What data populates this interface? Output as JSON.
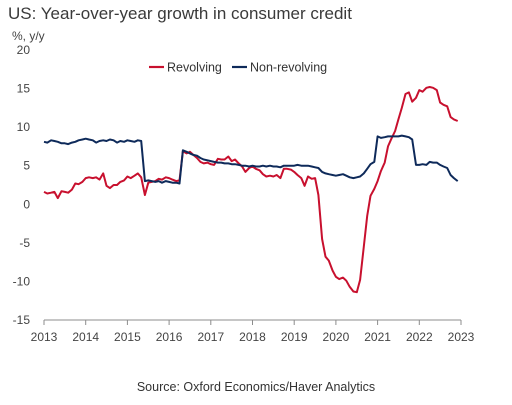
{
  "title": "US: Year-over-year growth in consumer credit",
  "unit_label": "%, y/y",
  "source": "Source: Oxford Economics/Haver Analytics",
  "chart_data": {
    "type": "line",
    "xlim": [
      2013,
      2023
    ],
    "ylim": [
      -15,
      20
    ],
    "y_ticks": [
      -15,
      -10,
      -5,
      0,
      5,
      10,
      15,
      20
    ],
    "x_ticks": [
      "2013",
      "2014",
      "2015",
      "2016",
      "2017",
      "2018",
      "2019",
      "2020",
      "2021",
      "2022",
      "2023"
    ],
    "grid": false,
    "legend_position": "top-center",
    "series": [
      {
        "name": "Revolving",
        "color": "#c8102e",
        "points": [
          [
            2013.0,
            1.6
          ],
          [
            2013.08,
            1.4
          ],
          [
            2013.17,
            1.5
          ],
          [
            2013.25,
            1.6
          ],
          [
            2013.33,
            0.8
          ],
          [
            2013.42,
            1.7
          ],
          [
            2013.5,
            1.6
          ],
          [
            2013.58,
            1.5
          ],
          [
            2013.67,
            1.9
          ],
          [
            2013.75,
            2.7
          ],
          [
            2013.83,
            2.6
          ],
          [
            2013.92,
            2.9
          ],
          [
            2014.0,
            3.4
          ],
          [
            2014.08,
            3.5
          ],
          [
            2014.17,
            3.4
          ],
          [
            2014.25,
            3.5
          ],
          [
            2014.33,
            3.2
          ],
          [
            2014.42,
            4.0
          ],
          [
            2014.5,
            2.4
          ],
          [
            2014.58,
            2.1
          ],
          [
            2014.67,
            2.5
          ],
          [
            2014.75,
            2.5
          ],
          [
            2014.83,
            2.9
          ],
          [
            2014.92,
            3.1
          ],
          [
            2015.0,
            3.6
          ],
          [
            2015.08,
            3.4
          ],
          [
            2015.17,
            3.7
          ],
          [
            2015.25,
            4.0
          ],
          [
            2015.33,
            3.5
          ],
          [
            2015.42,
            1.2
          ],
          [
            2015.5,
            2.8
          ],
          [
            2015.58,
            2.9
          ],
          [
            2015.67,
            3.0
          ],
          [
            2015.75,
            3.3
          ],
          [
            2015.83,
            3.2
          ],
          [
            2015.92,
            3.5
          ],
          [
            2016.0,
            3.4
          ],
          [
            2016.08,
            3.2
          ],
          [
            2016.17,
            3.0
          ],
          [
            2016.25,
            3.1
          ],
          [
            2016.33,
            6.9
          ],
          [
            2016.42,
            6.6
          ],
          [
            2016.5,
            6.8
          ],
          [
            2016.58,
            6.4
          ],
          [
            2016.67,
            6.0
          ],
          [
            2016.75,
            5.5
          ],
          [
            2016.83,
            5.3
          ],
          [
            2016.92,
            5.4
          ],
          [
            2017.0,
            5.2
          ],
          [
            2017.08,
            5.1
          ],
          [
            2017.17,
            5.9
          ],
          [
            2017.25,
            5.8
          ],
          [
            2017.33,
            5.8
          ],
          [
            2017.42,
            6.2
          ],
          [
            2017.5,
            5.6
          ],
          [
            2017.58,
            5.8
          ],
          [
            2017.67,
            5.3
          ],
          [
            2017.75,
            4.9
          ],
          [
            2017.83,
            4.2
          ],
          [
            2017.92,
            4.7
          ],
          [
            2018.0,
            4.9
          ],
          [
            2018.08,
            4.6
          ],
          [
            2018.17,
            4.4
          ],
          [
            2018.25,
            3.9
          ],
          [
            2018.33,
            3.6
          ],
          [
            2018.42,
            3.7
          ],
          [
            2018.5,
            3.6
          ],
          [
            2018.58,
            3.8
          ],
          [
            2018.67,
            3.4
          ],
          [
            2018.75,
            4.6
          ],
          [
            2018.83,
            4.6
          ],
          [
            2018.92,
            4.5
          ],
          [
            2019.0,
            4.2
          ],
          [
            2019.08,
            3.8
          ],
          [
            2019.17,
            3.4
          ],
          [
            2019.25,
            2.4
          ],
          [
            2019.33,
            3.6
          ],
          [
            2019.42,
            3.3
          ],
          [
            2019.5,
            3.4
          ],
          [
            2019.58,
            1.2
          ],
          [
            2019.67,
            -4.5
          ],
          [
            2019.75,
            -6.8
          ],
          [
            2019.83,
            -7.3
          ],
          [
            2019.92,
            -8.6
          ],
          [
            2020.0,
            -9.4
          ],
          [
            2020.08,
            -9.7
          ],
          [
            2020.17,
            -9.5
          ],
          [
            2020.25,
            -9.9
          ],
          [
            2020.33,
            -10.7
          ],
          [
            2020.42,
            -11.3
          ],
          [
            2020.5,
            -11.4
          ],
          [
            2020.58,
            -9.8
          ],
          [
            2020.67,
            -5.5
          ],
          [
            2020.75,
            -1.5
          ],
          [
            2020.83,
            1.1
          ],
          [
            2020.92,
            2.0
          ],
          [
            2021.0,
            3.0
          ],
          [
            2021.08,
            4.3
          ],
          [
            2021.17,
            5.4
          ],
          [
            2021.25,
            7.5
          ],
          [
            2021.33,
            8.5
          ],
          [
            2021.42,
            9.5
          ],
          [
            2021.5,
            11.0
          ],
          [
            2021.58,
            12.5
          ],
          [
            2021.67,
            14.3
          ],
          [
            2021.75,
            14.5
          ],
          [
            2021.83,
            13.3
          ],
          [
            2021.92,
            13.8
          ],
          [
            2022.0,
            14.8
          ],
          [
            2022.08,
            14.6
          ],
          [
            2022.17,
            15.1
          ],
          [
            2022.25,
            15.2
          ],
          [
            2022.33,
            15.1
          ],
          [
            2022.42,
            14.8
          ],
          [
            2022.5,
            13.2
          ],
          [
            2022.58,
            12.9
          ],
          [
            2022.67,
            12.7
          ],
          [
            2022.75,
            11.3
          ],
          [
            2022.83,
            11.0
          ],
          [
            2022.92,
            10.8
          ]
        ]
      },
      {
        "name": "Non-revolving",
        "color": "#0e2a5a",
        "points": [
          [
            2013.0,
            8.1
          ],
          [
            2013.08,
            8.0
          ],
          [
            2013.17,
            8.3
          ],
          [
            2013.25,
            8.2
          ],
          [
            2013.33,
            8.1
          ],
          [
            2013.42,
            7.9
          ],
          [
            2013.5,
            7.9
          ],
          [
            2013.58,
            7.8
          ],
          [
            2013.67,
            8.0
          ],
          [
            2013.75,
            8.1
          ],
          [
            2013.83,
            8.3
          ],
          [
            2013.92,
            8.4
          ],
          [
            2014.0,
            8.5
          ],
          [
            2014.08,
            8.4
          ],
          [
            2014.17,
            8.3
          ],
          [
            2014.25,
            8.0
          ],
          [
            2014.33,
            8.2
          ],
          [
            2014.42,
            8.3
          ],
          [
            2014.5,
            8.2
          ],
          [
            2014.58,
            8.4
          ],
          [
            2014.67,
            8.3
          ],
          [
            2014.75,
            8.0
          ],
          [
            2014.83,
            8.2
          ],
          [
            2014.92,
            8.1
          ],
          [
            2015.0,
            8.3
          ],
          [
            2015.08,
            8.2
          ],
          [
            2015.17,
            8.1
          ],
          [
            2015.25,
            8.3
          ],
          [
            2015.33,
            8.2
          ],
          [
            2015.42,
            3.0
          ],
          [
            2015.5,
            3.1
          ],
          [
            2015.58,
            3.0
          ],
          [
            2015.67,
            2.9
          ],
          [
            2015.75,
            3.0
          ],
          [
            2015.83,
            2.8
          ],
          [
            2015.92,
            3.0
          ],
          [
            2016.0,
            2.9
          ],
          [
            2016.08,
            2.8
          ],
          [
            2016.17,
            2.8
          ],
          [
            2016.25,
            2.7
          ],
          [
            2016.33,
            7.0
          ],
          [
            2016.42,
            6.8
          ],
          [
            2016.5,
            6.6
          ],
          [
            2016.58,
            6.4
          ],
          [
            2016.67,
            6.3
          ],
          [
            2016.75,
            6.0
          ],
          [
            2016.83,
            5.8
          ],
          [
            2016.92,
            5.7
          ],
          [
            2017.0,
            5.6
          ],
          [
            2017.08,
            5.5
          ],
          [
            2017.17,
            5.4
          ],
          [
            2017.25,
            5.4
          ],
          [
            2017.33,
            5.3
          ],
          [
            2017.42,
            5.3
          ],
          [
            2017.5,
            5.2
          ],
          [
            2017.58,
            5.2
          ],
          [
            2017.67,
            5.1
          ],
          [
            2017.75,
            5.0
          ],
          [
            2017.83,
            5.0
          ],
          [
            2017.92,
            4.9
          ],
          [
            2018.0,
            5.0
          ],
          [
            2018.08,
            4.9
          ],
          [
            2018.17,
            4.9
          ],
          [
            2018.25,
            5.0
          ],
          [
            2018.33,
            4.9
          ],
          [
            2018.42,
            5.0
          ],
          [
            2018.5,
            4.9
          ],
          [
            2018.58,
            4.9
          ],
          [
            2018.67,
            4.8
          ],
          [
            2018.75,
            5.0
          ],
          [
            2018.83,
            5.0
          ],
          [
            2018.92,
            5.0
          ],
          [
            2019.0,
            5.0
          ],
          [
            2019.08,
            5.1
          ],
          [
            2019.17,
            5.0
          ],
          [
            2019.25,
            5.0
          ],
          [
            2019.33,
            5.0
          ],
          [
            2019.42,
            4.9
          ],
          [
            2019.5,
            4.8
          ],
          [
            2019.58,
            4.7
          ],
          [
            2019.67,
            4.2
          ],
          [
            2019.75,
            4.0
          ],
          [
            2019.83,
            3.9
          ],
          [
            2019.92,
            3.8
          ],
          [
            2020.0,
            3.7
          ],
          [
            2020.08,
            3.8
          ],
          [
            2020.17,
            3.9
          ],
          [
            2020.25,
            3.7
          ],
          [
            2020.33,
            3.5
          ],
          [
            2020.42,
            3.4
          ],
          [
            2020.5,
            3.5
          ],
          [
            2020.58,
            3.6
          ],
          [
            2020.67,
            4.0
          ],
          [
            2020.75,
            4.6
          ],
          [
            2020.83,
            5.2
          ],
          [
            2020.92,
            5.5
          ],
          [
            2021.0,
            8.8
          ],
          [
            2021.08,
            8.6
          ],
          [
            2021.17,
            8.7
          ],
          [
            2021.25,
            8.8
          ],
          [
            2021.33,
            8.8
          ],
          [
            2021.42,
            8.8
          ],
          [
            2021.5,
            8.8
          ],
          [
            2021.58,
            8.9
          ],
          [
            2021.67,
            8.8
          ],
          [
            2021.75,
            8.7
          ],
          [
            2021.83,
            8.4
          ],
          [
            2021.92,
            5.1
          ],
          [
            2022.0,
            5.1
          ],
          [
            2022.08,
            5.2
          ],
          [
            2022.17,
            5.1
          ],
          [
            2022.25,
            5.5
          ],
          [
            2022.33,
            5.4
          ],
          [
            2022.42,
            5.4
          ],
          [
            2022.5,
            5.1
          ],
          [
            2022.58,
            4.9
          ],
          [
            2022.67,
            4.7
          ],
          [
            2022.75,
            3.8
          ],
          [
            2022.83,
            3.4
          ],
          [
            2022.92,
            3.0
          ]
        ]
      }
    ]
  }
}
